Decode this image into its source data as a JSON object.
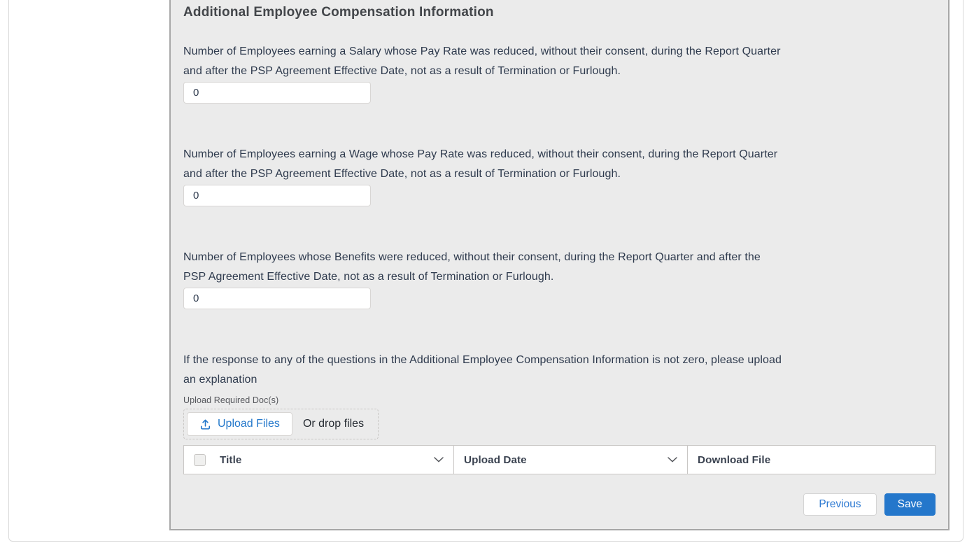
{
  "page": {
    "title": "Additional Employee Compensation Information"
  },
  "questions": [
    {
      "id": "salary-reduced",
      "lines": [
        "Number of Employees earning a Salary whose Pay Rate was reduced, without their consent, during the Report Quarter",
        "and after the PSP Agreement Effective Date, not as a result of Termination or Furlough."
      ],
      "value": "0"
    },
    {
      "id": "wage-reduced",
      "lines": [
        "Number of Employees earning a Wage whose Pay Rate was reduced, without their consent, during the Report Quarter",
        "and after the PSP Agreement Effective Date, not as a result of Termination or Furlough."
      ],
      "value": "0"
    },
    {
      "id": "benefits-reduced",
      "lines": [
        "Number of Employees whose Benefits were reduced, without their consent, during the Report Quarter and after the",
        "PSP Agreement Effective Date, not as a result of Termination or Furlough."
      ],
      "value": "0"
    }
  ],
  "upload": {
    "prompt_lines": [
      "If the response to any of the questions in the Additional Employee Compensation Information is not zero, please upload",
      "an explanation"
    ],
    "label": "Upload Required Doc(s)",
    "button_label": "Upload Files",
    "drop_text": "Or drop files"
  },
  "files_table": {
    "columns": [
      {
        "label": "Title"
      },
      {
        "label": "Upload Date"
      },
      {
        "label": "Download File"
      }
    ],
    "rows": []
  },
  "actions": {
    "previous_label": "Previous",
    "save_label": "Save"
  },
  "colors": {
    "accent_blue": "#2477cb",
    "link_blue": "#2478cb",
    "panel_bg": "#ebebeb",
    "panel_border": "#a7a7a7",
    "card_border": "#d9d9d9",
    "body_text": "#2e3a4d",
    "heading_text": "#43464a",
    "muted_text": "#54565b",
    "input_border": "#d8d6d4",
    "table_border": "#c9c7c5"
  }
}
